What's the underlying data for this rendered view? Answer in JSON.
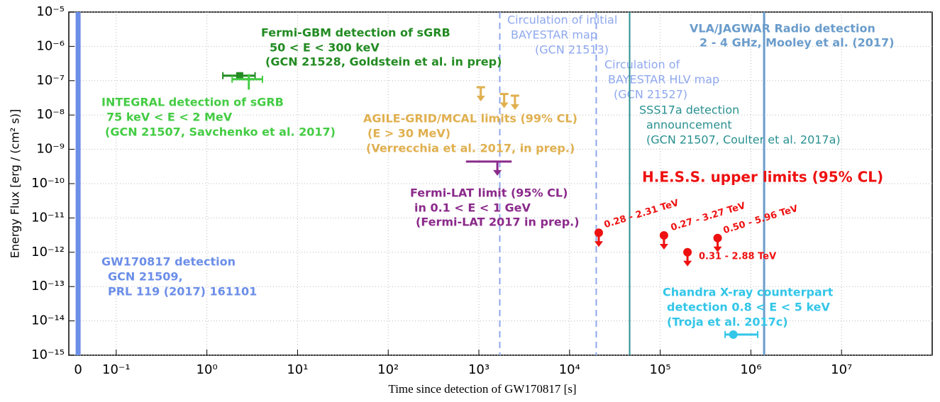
{
  "chart_data": {
    "type": "scatter",
    "log_x": true,
    "log_y": true,
    "grid": true,
    "x_label": "Time since detection of GW170817 [s]",
    "y_label": "Energy Flux [erg / (cm² s)]",
    "xlim": [
      0.03,
      100000000
    ],
    "ylim": [
      1e-15,
      1e-05
    ],
    "xticks": [
      {
        "value": 0.038,
        "label": "0"
      },
      {
        "value": 0.1,
        "label": "10⁻¹"
      },
      {
        "value": 1,
        "label": "10⁰"
      },
      {
        "value": 10,
        "label": "10¹"
      },
      {
        "value": 100,
        "label": "10²"
      },
      {
        "value": 1000,
        "label": "10³"
      },
      {
        "value": 10000,
        "label": "10⁴"
      },
      {
        "value": 100000,
        "label": "10⁵"
      },
      {
        "value": 1000000,
        "label": "10⁶"
      },
      {
        "value": 10000000,
        "label": "10⁷"
      }
    ],
    "yticks": [
      {
        "value": 1e-15,
        "label": "10⁻¹⁵"
      },
      {
        "value": 1e-14,
        "label": "10⁻¹⁴"
      },
      {
        "value": 1e-13,
        "label": "10⁻¹³"
      },
      {
        "value": 1e-12,
        "label": "10⁻¹²"
      },
      {
        "value": 1e-11,
        "label": "10⁻¹¹"
      },
      {
        "value": 1e-10,
        "label": "10⁻¹⁰"
      },
      {
        "value": 1e-09,
        "label": "10⁻⁹"
      },
      {
        "value": 1e-08,
        "label": "10⁻⁸"
      },
      {
        "value": 1e-07,
        "label": "10⁻⁷"
      },
      {
        "value": 1e-06,
        "label": "10⁻⁶"
      },
      {
        "value": 1e-05,
        "label": "10⁻⁵"
      }
    ],
    "series": [
      {
        "name": [
          "Fermi-GBM detection of sGRB",
          "50 < E < 300 keV",
          "(GCN 21528, Goldstein et al. in prep)"
        ],
        "color": "#228b22",
        "bold": true,
        "marker": "square",
        "x": [
          2.3
        ],
        "values": [
          1.4e-07
        ],
        "x_low": [
          1.5
        ],
        "x_high": [
          3.4
        ]
      },
      {
        "name": [
          "INTEGRAL detection of sGRB",
          "75 keV < E < 2 MeV",
          "(GCN 21507, Savchenko et al. 2017)"
        ],
        "color": "#44cc44",
        "bold": true,
        "marker": "cross",
        "x": [
          2.9
        ],
        "values": [
          1.1e-07
        ],
        "x_low": [
          1.9
        ],
        "x_high": [
          4.1
        ],
        "y_low": [
          5.5e-08
        ],
        "y_high": [
          1.55e-07
        ]
      },
      {
        "name": [
          "AGILE-GRID/MCAL limits (99% CL)",
          "(E > 30 MeV)",
          "(Verrecchia et al. 2017, in prep.)"
        ],
        "color": "#e0b050",
        "bold": true,
        "marker": "cap",
        "upper_limit": true,
        "x": [
          1050,
          1900,
          2500
        ],
        "values": [
          4.4e-08,
          2.8e-08,
          2.5e-08
        ]
      },
      {
        "name": [
          "Fermi-LAT limit (95% CL)",
          "in 0.1 < E < 1 GeV",
          "(Fermi-LAT 2017 in prep.)"
        ],
        "color": "#8b2a8b",
        "bold": true,
        "marker": "none",
        "upper_limit": true,
        "x": [
          1600
        ],
        "values": [
          4.4e-10
        ],
        "x_low": [
          720
        ],
        "x_high": [
          2300
        ]
      },
      {
        "name": [
          "H.E.S.S. upper limits (95% CL)"
        ],
        "color": "#ee1111",
        "bold": true,
        "marker": "circle",
        "upper_limit": true,
        "x": [
          21000,
          110000,
          200000,
          430000
        ],
        "values": [
          3.7e-12,
          3.1e-12,
          1e-12,
          2.6e-12
        ],
        "point_labels": [
          "0.28 - 2.31 TeV",
          "0.27 - 3.27 TeV",
          "0.31 - 2.88 TeV",
          "0.50 - 5.96 TeV"
        ]
      },
      {
        "name": [
          "Chandra X-ray counterpart",
          "detection 0.8 < E < 5 keV",
          "(Troja et al. 2017c)"
        ],
        "color": "#33c6e8",
        "bold": true,
        "marker": "circle",
        "x": [
          640000
        ],
        "values": [
          4e-15
        ],
        "x_low": [
          520000
        ],
        "x_high": [
          1190000
        ]
      }
    ],
    "vlines": [
      {
        "name": [
          "GW170817 detection",
          "GCN 21509,",
          "PRL 119 (2017) 161101"
        ],
        "x": 0.038,
        "color": "#6b8ee8",
        "style": "solid",
        "width": 7,
        "bold": true
      },
      {
        "name": [
          "Circulation of initial",
          "BAYESTAR map",
          "(GCN 21513)"
        ],
        "x": 1700,
        "color": "#8fa8ee",
        "style": "dashed",
        "width": 2,
        "bold": false
      },
      {
        "name": [
          "Circulation of",
          "BAYESTAR HLV map",
          "(GCN 21527)"
        ],
        "x": 19700,
        "color": "#8fa8ee",
        "style": "dashed",
        "width": 2,
        "bold": false
      },
      {
        "name": [
          "SSS17a detection",
          "announcement",
          "(GCN 21507, Coulter et al. 2017a)"
        ],
        "x": 46000,
        "color": "#2a9090",
        "style": "solid",
        "width": 2,
        "bold": false
      },
      {
        "name": [
          "VLA/JAGWAR Radio detection",
          "2 - 4 GHz, Mooley et al. (2017)"
        ],
        "x": 1400000,
        "color": "#6a9ccb",
        "style": "solid",
        "width": 3,
        "bold": true
      }
    ]
  }
}
